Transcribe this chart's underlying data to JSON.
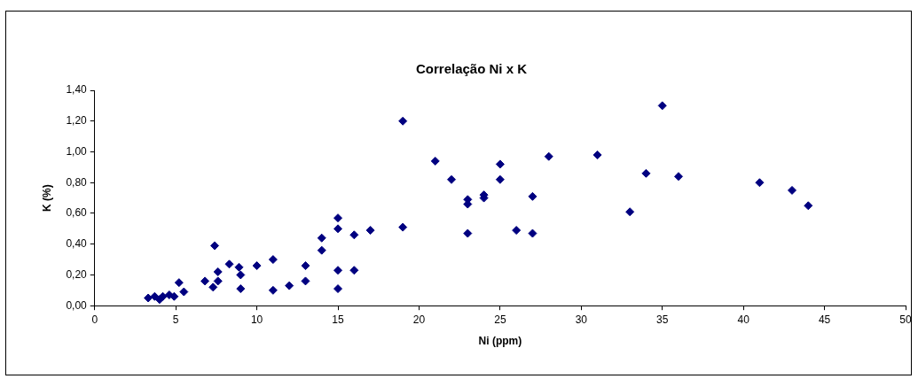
{
  "chart_data": {
    "type": "scatter",
    "title": "Correlação Ni x K",
    "xlabel": "Ni (ppm)",
    "ylabel": "K (%)",
    "x": [
      3.3,
      3.7,
      4.0,
      4.2,
      4.6,
      4.9,
      5.2,
      5.5,
      6.8,
      7.3,
      7.4,
      7.6,
      7.6,
      8.3,
      8.9,
      9.0,
      9.0,
      10,
      11,
      11,
      12,
      13,
      13,
      14,
      14,
      15,
      15,
      15,
      15,
      16,
      16,
      17,
      19,
      19,
      21,
      22,
      23,
      23,
      23,
      24,
      24,
      25,
      25,
      26,
      27,
      27,
      28,
      31,
      33,
      34,
      35,
      36,
      41,
      43,
      44
    ],
    "series": [
      {
        "color": "#000080",
        "values": [
          0.05,
          0.06,
          0.04,
          0.06,
          0.07,
          0.06,
          0.15,
          0.09,
          0.16,
          0.12,
          0.39,
          0.16,
          0.22,
          0.27,
          0.25,
          0.2,
          0.11,
          0.26,
          0.3,
          0.1,
          0.13,
          0.26,
          0.16,
          0.44,
          0.36,
          0.57,
          0.5,
          0.23,
          0.11,
          0.46,
          0.23,
          0.49,
          1.2,
          0.51,
          0.94,
          0.82,
          0.69,
          0.66,
          0.47,
          0.72,
          0.7,
          0.92,
          0.82,
          0.49,
          0.71,
          0.47,
          0.97,
          0.98,
          0.61,
          0.86,
          1.3,
          0.84,
          0.8,
          0.75,
          0.65
        ]
      }
    ],
    "xlim": [
      0,
      50
    ],
    "xticks": [
      0,
      5,
      10,
      15,
      20,
      25,
      30,
      35,
      40,
      45,
      50
    ],
    "ylim": [
      0,
      1.4
    ],
    "yticks": [
      {
        "value": 0,
        "label": "0,00"
      },
      {
        "value": 0.2,
        "label": "0,20"
      },
      {
        "value": 0.4,
        "label": "0,40"
      },
      {
        "value": 0.6,
        "label": "0,60"
      },
      {
        "value": 0.8,
        "label": "0,80"
      },
      {
        "value": 1.0,
        "label": "1,00"
      },
      {
        "value": 1.2,
        "label": "1,20"
      },
      {
        "value": 1.4,
        "label": "1,40"
      }
    ],
    "grid": false,
    "legend": false,
    "marker": "diamond"
  }
}
